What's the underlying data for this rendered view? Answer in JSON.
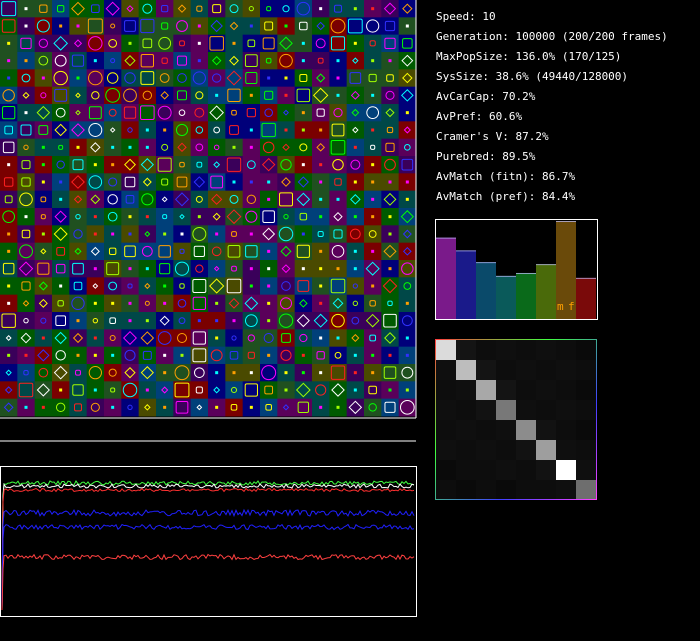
{
  "stats": [
    "Speed: 10",
    "Generation: 100000 (200/200 frames)",
    "MaxPopSize: 136.0% (170/125)",
    "SysSize: 38.6% (49440/128000)",
    "AvCarCap: 70.2%",
    "AvPref: 60.6%",
    "Cramer's V: 87.2%",
    "Purebred: 89.5%",
    "AvMatch (fitn): 86.7%",
    "AvMatch (pref): 84.4%"
  ],
  "pref_bars": {
    "labels": [
      "m",
      "f"
    ],
    "heights": [
      0.83,
      0.7,
      0.58,
      0.44,
      0.47,
      0.56,
      1.0,
      0.42
    ],
    "colors": [
      "#7a1a8a",
      "#1a1a8a",
      "#0a4a6a",
      "#0a5a5a",
      "#0a6a1a",
      "#4a6a0a",
      "#6a4a0a",
      "#7a0a0a"
    ]
  },
  "matrix": [
    [
      0.86,
      0.08,
      0.05,
      0.06,
      0.05,
      0.06,
      0.05,
      0.04
    ],
    [
      0.06,
      0.74,
      0.08,
      0.05,
      0.06,
      0.05,
      0.06,
      0.05
    ],
    [
      0.05,
      0.06,
      0.66,
      0.08,
      0.05,
      0.06,
      0.05,
      0.04
    ],
    [
      0.06,
      0.05,
      0.07,
      0.47,
      0.06,
      0.05,
      0.06,
      0.05
    ],
    [
      0.05,
      0.06,
      0.05,
      0.06,
      0.55,
      0.07,
      0.05,
      0.04
    ],
    [
      0.06,
      0.05,
      0.06,
      0.05,
      0.07,
      0.62,
      0.06,
      0.05
    ],
    [
      0.04,
      0.05,
      0.05,
      0.06,
      0.05,
      0.07,
      1.0,
      0.06
    ],
    [
      0.05,
      0.04,
      0.05,
      0.04,
      0.05,
      0.05,
      0.06,
      0.43
    ]
  ]
}
